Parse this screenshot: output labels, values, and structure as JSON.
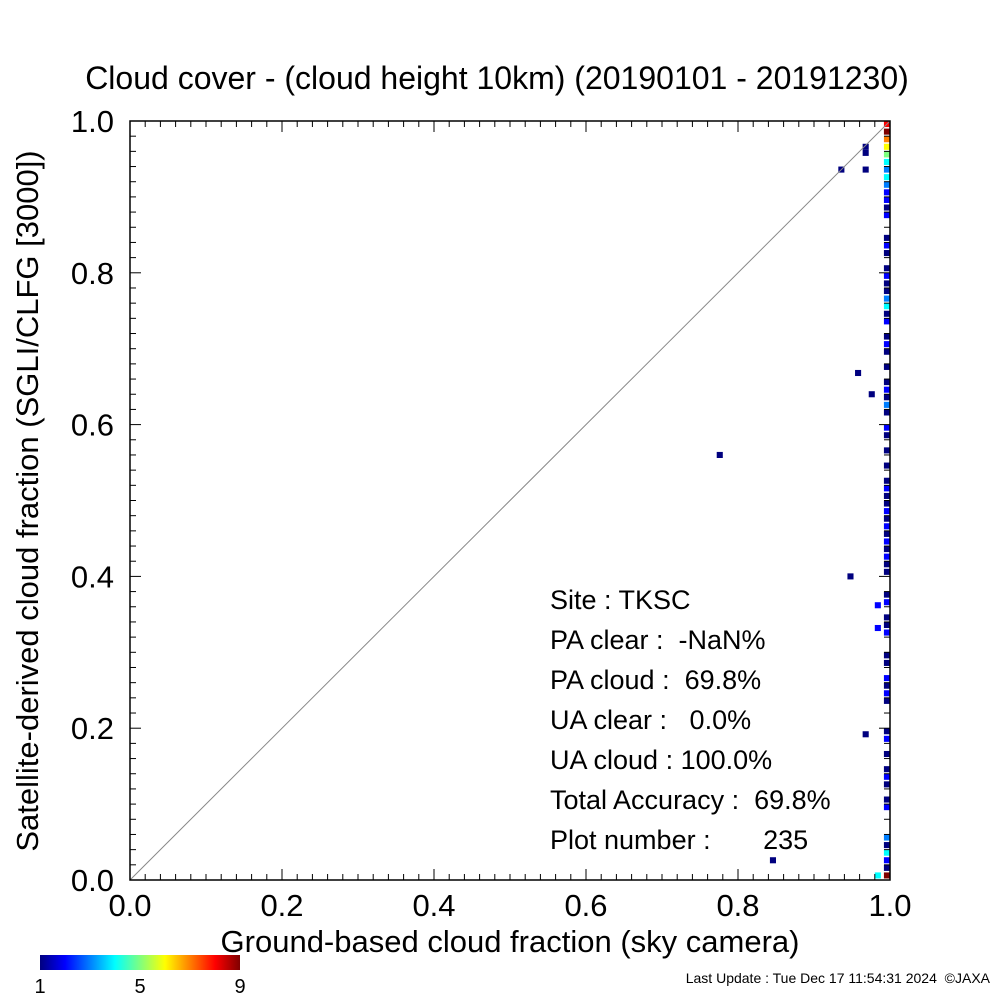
{
  "chart_data": {
    "type": "heatmap",
    "title": "Cloud cover - (cloud height 10km)  (20190101 - 20191230)",
    "xlabel": "Ground-based cloud fraction (sky camera)",
    "ylabel": "Satellite-derived cloud fraction (SGLI/CLFG [3000])",
    "xlim": [
      0,
      1
    ],
    "ylim": [
      0,
      1
    ],
    "x_tick_labels": [
      "0.0",
      "0.2",
      "0.4",
      "0.6",
      "0.8",
      "1.0"
    ],
    "y_tick_labels": [
      "0.0",
      "0.2",
      "0.4",
      "0.6",
      "0.8",
      "1.0"
    ],
    "x_ticks": [
      0,
      0.2,
      0.4,
      0.6,
      0.8,
      1.0
    ],
    "y_ticks": [
      0,
      0.2,
      0.4,
      0.6,
      0.8,
      1.0
    ],
    "diagonal_line": true,
    "grid": false,
    "colorbar": {
      "min": 1,
      "max": 9,
      "tick_labels": [
        "1",
        "5",
        "9"
      ],
      "colors": [
        "#00007f",
        "#0000ff",
        "#007fff",
        "#00ffff",
        "#7fff7f",
        "#ffff00",
        "#ff7f00",
        "#ff0000",
        "#7f0000"
      ],
      "placement": "bottom-left"
    },
    "cells": [
      {
        "x": 0.936,
        "y": 0.936,
        "count": 1
      },
      {
        "x": 0.968,
        "y": 0.966,
        "count": 1
      },
      {
        "x": 0.968,
        "y": 0.958,
        "count": 1
      },
      {
        "x": 0.968,
        "y": 0.936,
        "count": 1
      },
      {
        "x": 0.958,
        "y": 0.668,
        "count": 1
      },
      {
        "x": 0.976,
        "y": 0.64,
        "count": 1
      },
      {
        "x": 0.776,
        "y": 0.56,
        "count": 1
      },
      {
        "x": 0.948,
        "y": 0.4,
        "count": 1
      },
      {
        "x": 0.984,
        "y": 0.362,
        "count": 2
      },
      {
        "x": 0.984,
        "y": 0.332,
        "count": 2
      },
      {
        "x": 0.968,
        "y": 0.192,
        "count": 1
      },
      {
        "x": 0.846,
        "y": 0.026,
        "count": 1
      },
      {
        "x": 0.984,
        "y": 0.006,
        "count": 4
      },
      {
        "x": 0.996,
        "y": 0.996,
        "count": 8
      },
      {
        "x": 0.996,
        "y": 0.986,
        "count": 9
      },
      {
        "x": 0.996,
        "y": 0.976,
        "count": 7
      },
      {
        "x": 0.996,
        "y": 0.966,
        "count": 6
      },
      {
        "x": 0.996,
        "y": 0.956,
        "count": 5
      },
      {
        "x": 0.996,
        "y": 0.946,
        "count": 4
      },
      {
        "x": 0.996,
        "y": 0.936,
        "count": 3
      },
      {
        "x": 0.996,
        "y": 0.926,
        "count": 4
      },
      {
        "x": 0.996,
        "y": 0.916,
        "count": 3
      },
      {
        "x": 0.996,
        "y": 0.906,
        "count": 2
      },
      {
        "x": 0.996,
        "y": 0.896,
        "count": 2
      },
      {
        "x": 0.996,
        "y": 0.886,
        "count": 1
      },
      {
        "x": 0.996,
        "y": 0.876,
        "count": 2
      },
      {
        "x": 0.996,
        "y": 0.846,
        "count": 1
      },
      {
        "x": 0.996,
        "y": 0.836,
        "count": 2
      },
      {
        "x": 0.996,
        "y": 0.826,
        "count": 1
      },
      {
        "x": 0.996,
        "y": 0.806,
        "count": 1
      },
      {
        "x": 0.996,
        "y": 0.796,
        "count": 2
      },
      {
        "x": 0.996,
        "y": 0.786,
        "count": 1
      },
      {
        "x": 0.996,
        "y": 0.776,
        "count": 1
      },
      {
        "x": 0.996,
        "y": 0.766,
        "count": 3
      },
      {
        "x": 0.996,
        "y": 0.756,
        "count": 4
      },
      {
        "x": 0.996,
        "y": 0.746,
        "count": 1
      },
      {
        "x": 0.996,
        "y": 0.736,
        "count": 2
      },
      {
        "x": 0.996,
        "y": 0.716,
        "count": 1
      },
      {
        "x": 0.996,
        "y": 0.706,
        "count": 2
      },
      {
        "x": 0.996,
        "y": 0.696,
        "count": 1
      },
      {
        "x": 0.996,
        "y": 0.676,
        "count": 1
      },
      {
        "x": 0.996,
        "y": 0.656,
        "count": 1
      },
      {
        "x": 0.996,
        "y": 0.646,
        "count": 2
      },
      {
        "x": 0.996,
        "y": 0.636,
        "count": 1
      },
      {
        "x": 0.996,
        "y": 0.626,
        "count": 3
      },
      {
        "x": 0.996,
        "y": 0.616,
        "count": 1
      },
      {
        "x": 0.996,
        "y": 0.596,
        "count": 2
      },
      {
        "x": 0.996,
        "y": 0.586,
        "count": 1
      },
      {
        "x": 0.996,
        "y": 0.566,
        "count": 1
      },
      {
        "x": 0.996,
        "y": 0.546,
        "count": 1
      },
      {
        "x": 0.996,
        "y": 0.526,
        "count": 1
      },
      {
        "x": 0.996,
        "y": 0.516,
        "count": 2
      },
      {
        "x": 0.996,
        "y": 0.506,
        "count": 1
      },
      {
        "x": 0.996,
        "y": 0.496,
        "count": 1
      },
      {
        "x": 0.996,
        "y": 0.486,
        "count": 2
      },
      {
        "x": 0.996,
        "y": 0.476,
        "count": 1
      },
      {
        "x": 0.996,
        "y": 0.466,
        "count": 2
      },
      {
        "x": 0.996,
        "y": 0.456,
        "count": 1
      },
      {
        "x": 0.996,
        "y": 0.446,
        "count": 2
      },
      {
        "x": 0.996,
        "y": 0.436,
        "count": 1
      },
      {
        "x": 0.996,
        "y": 0.426,
        "count": 2
      },
      {
        "x": 0.996,
        "y": 0.416,
        "count": 1
      },
      {
        "x": 0.996,
        "y": 0.406,
        "count": 1
      },
      {
        "x": 0.996,
        "y": 0.376,
        "count": 1
      },
      {
        "x": 0.996,
        "y": 0.366,
        "count": 2
      },
      {
        "x": 0.996,
        "y": 0.346,
        "count": 1
      },
      {
        "x": 0.996,
        "y": 0.336,
        "count": 1
      },
      {
        "x": 0.996,
        "y": 0.326,
        "count": 2
      },
      {
        "x": 0.996,
        "y": 0.296,
        "count": 1
      },
      {
        "x": 0.996,
        "y": 0.286,
        "count": 1
      },
      {
        "x": 0.996,
        "y": 0.266,
        "count": 2
      },
      {
        "x": 0.996,
        "y": 0.256,
        "count": 1
      },
      {
        "x": 0.996,
        "y": 0.246,
        "count": 2
      },
      {
        "x": 0.996,
        "y": 0.236,
        "count": 1
      },
      {
        "x": 0.996,
        "y": 0.196,
        "count": 1
      },
      {
        "x": 0.996,
        "y": 0.186,
        "count": 2
      },
      {
        "x": 0.996,
        "y": 0.166,
        "count": 1
      },
      {
        "x": 0.996,
        "y": 0.146,
        "count": 1
      },
      {
        "x": 0.996,
        "y": 0.136,
        "count": 2
      },
      {
        "x": 0.996,
        "y": 0.126,
        "count": 1
      },
      {
        "x": 0.996,
        "y": 0.106,
        "count": 1
      },
      {
        "x": 0.996,
        "y": 0.096,
        "count": 2
      },
      {
        "x": 0.996,
        "y": 0.056,
        "count": 3
      },
      {
        "x": 0.996,
        "y": 0.046,
        "count": 1
      },
      {
        "x": 0.996,
        "y": 0.036,
        "count": 4
      },
      {
        "x": 0.996,
        "y": 0.026,
        "count": 2
      },
      {
        "x": 0.996,
        "y": 0.016,
        "count": 1
      },
      {
        "x": 0.996,
        "y": 0.006,
        "count": 9
      }
    ]
  },
  "stats": {
    "site": "Site : TKSC",
    "pa_clear": "PA clear :  -NaN%",
    "pa_cloud": "PA cloud :  69.8%",
    "ua_clear": "UA clear :   0.0%",
    "ua_cloud": "UA cloud : 100.0%",
    "total_accuracy": "Total Accuracy :  69.8%",
    "plot_number": "Plot number :       235"
  },
  "footer": "Last Update : Tue Dec 17 11:54:31 2024  ©JAXA"
}
